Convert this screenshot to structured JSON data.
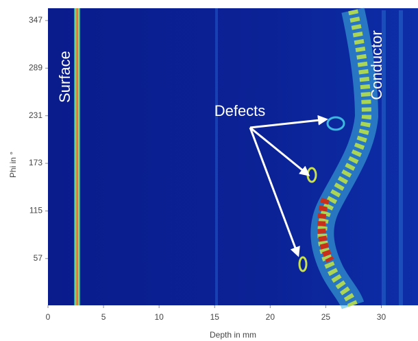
{
  "chart_data": {
    "type": "heatmap",
    "xlabel": "Depth in mm",
    "ylabel": "Phi in °",
    "xlim": [
      0,
      33.3
    ],
    "xticks": [
      0,
      5,
      10,
      15,
      20,
      25,
      30
    ],
    "ylim": [
      0,
      362
    ],
    "yticks": [
      57,
      115,
      173,
      231,
      289,
      347
    ],
    "annotations": [
      "Surface",
      "Conductor",
      "Defects"
    ]
  }
}
